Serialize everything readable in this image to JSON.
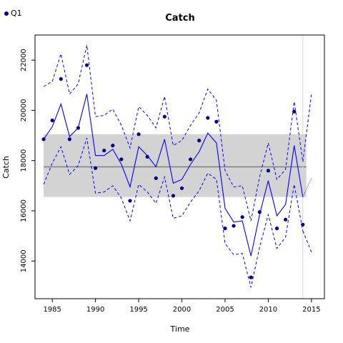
{
  "legend": {
    "label": "Q1",
    "color": "#00008b"
  },
  "chart_data": {
    "type": "line",
    "title": "Catch",
    "xlabel": "Time",
    "ylabel": "Catch",
    "xlim": [
      1983,
      2016.5
    ],
    "ylim": [
      12500,
      23000
    ],
    "x_ticks": [
      1985,
      1990,
      1995,
      2000,
      2005,
      2010,
      2015
    ],
    "y_ticks": [
      14000,
      16000,
      18000,
      20000,
      22000
    ],
    "mean": 17750,
    "band": [
      16550,
      19050
    ],
    "vline_x": 2014,
    "colors": {
      "observed": "#00008b",
      "fit": "#0000ff",
      "band": "#d3d3d3",
      "mean": "#808080",
      "vline": "#d3d3d3"
    },
    "observed": {
      "name": "Q1",
      "x": [
        1984,
        1985,
        1986,
        1987,
        1988,
        1989,
        1990,
        1991,
        1992,
        1993,
        1994,
        1995,
        1996,
        1997,
        1998,
        1999,
        2000,
        2001,
        2002,
        2003,
        2004,
        2005,
        2006,
        2007,
        2008,
        2009,
        2010,
        2011,
        2012,
        2013,
        2014
      ],
      "y": [
        18850,
        19600,
        21250,
        18850,
        19300,
        21800,
        17700,
        18400,
        18600,
        18050,
        16400,
        19050,
        18150,
        17300,
        19750,
        16600,
        16900,
        18050,
        18800,
        19700,
        19550,
        15300,
        15400,
        15750,
        13350,
        15950,
        17600,
        15300,
        15650,
        19950,
        15450
      ]
    },
    "fit": {
      "x": [
        1984,
        1985,
        1986,
        1987,
        1988,
        1989,
        1990,
        1991,
        1992,
        1993,
        1994,
        1995,
        1996,
        1997,
        1998,
        1999,
        2000,
        2001,
        2002,
        2003,
        2004,
        2005,
        2006,
        2007,
        2008,
        2009,
        2010,
        2011,
        2012,
        2013,
        2014
      ],
      "y": [
        18850,
        19350,
        20250,
        18950,
        19300,
        20650,
        18200,
        18200,
        18450,
        17850,
        16950,
        18550,
        18200,
        17750,
        18850,
        17100,
        17250,
        17850,
        18350,
        19100,
        18700,
        16100,
        15550,
        15600,
        14200,
        15850,
        17200,
        15800,
        16250,
        18600,
        16550
      ]
    },
    "fit_upper": {
      "x": [
        1984,
        1985,
        1986,
        1987,
        1988,
        1989,
        1990,
        1991,
        1992,
        1993,
        1994,
        1995,
        1996,
        1997,
        1998,
        1999,
        2000,
        2001,
        2002,
        2003,
        2004,
        2005,
        2006,
        2007,
        2008,
        2009,
        2010,
        2011,
        2012,
        2013,
        2014
      ],
      "y": [
        20950,
        21150,
        22250,
        20650,
        21050,
        22600,
        19750,
        19800,
        20050,
        19400,
        18500,
        20150,
        19800,
        19300,
        20550,
        18600,
        18800,
        19400,
        19900,
        20850,
        20400,
        17600,
        16950,
        17000,
        15600,
        17350,
        18700,
        17250,
        17650,
        20350,
        17950
      ]
    },
    "fit_lower": {
      "x": [
        1984,
        1985,
        1986,
        1987,
        1988,
        1989,
        1990,
        1991,
        1992,
        1993,
        1994,
        1995,
        1996,
        1997,
        1998,
        1999,
        2000,
        2001,
        2002,
        2003,
        2004,
        2005,
        2006,
        2007,
        2008,
        2009,
        2010,
        2011,
        2012,
        2013,
        2014
      ],
      "y": [
        17050,
        17900,
        18550,
        17450,
        17800,
        18900,
        16700,
        16750,
        17000,
        16500,
        15600,
        17050,
        16750,
        16300,
        17350,
        15700,
        15800,
        16350,
        16800,
        17500,
        17250,
        14700,
        14250,
        14300,
        12950,
        14550,
        15850,
        14500,
        14950,
        17050,
        15200
      ]
    },
    "forecast": {
      "x": [
        2014,
        2015
      ],
      "y": [
        16550,
        17300
      ]
    },
    "forecast_upper": {
      "x": [
        2014,
        2015
      ],
      "y": [
        17950,
        20650
      ]
    },
    "forecast_lower": {
      "x": [
        2014,
        2015
      ],
      "y": [
        15200,
        14350
      ]
    }
  }
}
